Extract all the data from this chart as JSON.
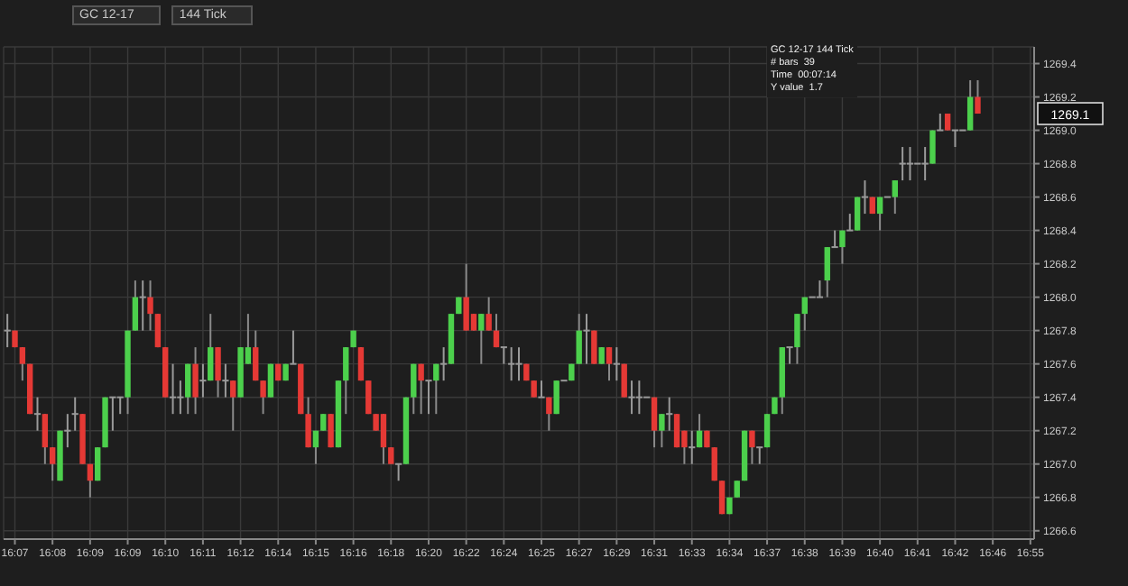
{
  "chart_data": {
    "type": "candlestick",
    "title": "GC 12-17",
    "subtitle": "144 Tick",
    "annotations": [
      "GC 12-17 144 Tick",
      "# bars  39",
      "Time  00:07:14",
      "Y value  1.7",
      {
        "text": "1269.1",
        "y": 1269.1
      }
    ],
    "categories": [
      null,
      "16:07",
      null,
      null,
      null,
      null,
      "16:08",
      null,
      null,
      null,
      null,
      "16:09",
      null,
      null,
      null,
      null,
      "16:09",
      null,
      null,
      null,
      null,
      "16:10",
      null,
      null,
      null,
      null,
      "16:11",
      null,
      null,
      null,
      null,
      "16:12",
      null,
      null,
      null,
      null,
      "16:14",
      null,
      null,
      null,
      null,
      "16:15",
      null,
      null,
      null,
      null,
      "16:16",
      null,
      null,
      null,
      null,
      "16:18",
      null,
      null,
      null,
      null,
      "16:20",
      null,
      null,
      null,
      null,
      "16:22",
      null,
      null,
      null,
      null,
      "16:24",
      null,
      null,
      null,
      null,
      "16:25",
      null,
      null,
      null,
      null,
      "16:27",
      null,
      null,
      null,
      null,
      "16:29",
      null,
      null,
      null,
      null,
      "16:31",
      null,
      null,
      null,
      null,
      "16:33",
      null,
      null,
      null,
      null,
      "16:34",
      null,
      null,
      null,
      null,
      "16:37",
      null,
      null,
      null,
      null,
      "16:38",
      null,
      null,
      null,
      null,
      "16:39",
      null,
      null,
      null,
      null,
      "16:40",
      null,
      null,
      null,
      null,
      "16:41",
      null,
      null,
      null,
      null,
      "16:42",
      null,
      null,
      null,
      null,
      "16:46",
      null,
      null,
      null,
      null,
      "16:55"
    ],
    "ohlc": [
      [
        1267.8,
        1267.9,
        1267.7,
        1267.8
      ],
      [
        1267.8,
        1267.8,
        1267.7,
        1267.7
      ],
      [
        1267.7,
        1267.7,
        1267.5,
        1267.6
      ],
      [
        1267.6,
        1267.6,
        1267.3,
        1267.3
      ],
      [
        1267.3,
        1267.4,
        1267.2,
        1267.3
      ],
      [
        1267.3,
        1267.3,
        1267.0,
        1267.1
      ],
      [
        1267.1,
        1267.1,
        1266.9,
        1267.0
      ],
      [
        1266.9,
        1267.2,
        1266.9,
        1267.2
      ],
      [
        1267.2,
        1267.3,
        1267.1,
        1267.2
      ],
      [
        1267.3,
        1267.4,
        1267.2,
        1267.3
      ],
      [
        1267.3,
        1267.3,
        1267.0,
        1267.0
      ],
      [
        1267.0,
        1267.0,
        1266.8,
        1266.9
      ],
      [
        1266.9,
        1267.1,
        1266.9,
        1267.1
      ],
      [
        1267.1,
        1267.4,
        1267.1,
        1267.4
      ],
      [
        1267.4,
        1267.4,
        1267.2,
        1267.4
      ],
      [
        1267.4,
        1267.4,
        1267.3,
        1267.4
      ],
      [
        1267.4,
        1267.8,
        1267.3,
        1267.8
      ],
      [
        1267.8,
        1268.1,
        1267.8,
        1268.0
      ],
      [
        1268.0,
        1268.1,
        1267.8,
        1268.0
      ],
      [
        1268.0,
        1268.1,
        1267.8,
        1267.9
      ],
      [
        1267.9,
        1267.9,
        1267.7,
        1267.7
      ],
      [
        1267.7,
        1267.7,
        1267.4,
        1267.4
      ],
      [
        1267.4,
        1267.6,
        1267.3,
        1267.4
      ],
      [
        1267.4,
        1267.5,
        1267.3,
        1267.4
      ],
      [
        1267.4,
        1267.6,
        1267.3,
        1267.6
      ],
      [
        1267.6,
        1267.7,
        1267.3,
        1267.4
      ],
      [
        1267.5,
        1267.6,
        1267.4,
        1267.5
      ],
      [
        1267.5,
        1267.9,
        1267.5,
        1267.7
      ],
      [
        1267.7,
        1267.7,
        1267.4,
        1267.5
      ],
      [
        1267.5,
        1267.6,
        1267.4,
        1267.5
      ],
      [
        1267.5,
        1267.5,
        1267.2,
        1267.4
      ],
      [
        1267.4,
        1267.7,
        1267.4,
        1267.7
      ],
      [
        1267.6,
        1267.9,
        1267.6,
        1267.7
      ],
      [
        1267.7,
        1267.8,
        1267.5,
        1267.5
      ],
      [
        1267.5,
        1267.5,
        1267.3,
        1267.4
      ],
      [
        1267.4,
        1267.6,
        1267.4,
        1267.6
      ],
      [
        1267.6,
        1267.6,
        1267.5,
        1267.5
      ],
      [
        1267.5,
        1267.6,
        1267.5,
        1267.6
      ],
      [
        1267.6,
        1267.8,
        1267.6,
        1267.6
      ],
      [
        1267.6,
        1267.6,
        1267.3,
        1267.3
      ],
      [
        1267.3,
        1267.4,
        1267.1,
        1267.1
      ],
      [
        1267.1,
        1267.2,
        1267.0,
        1267.2
      ],
      [
        1267.2,
        1267.3,
        1267.2,
        1267.3
      ],
      [
        1267.3,
        1267.3,
        1267.1,
        1267.1
      ],
      [
        1267.1,
        1267.5,
        1267.1,
        1267.5
      ],
      [
        1267.5,
        1267.7,
        1267.3,
        1267.7
      ],
      [
        1267.7,
        1267.8,
        1267.7,
        1267.8
      ],
      [
        1267.7,
        1267.7,
        1267.5,
        1267.5
      ],
      [
        1267.5,
        1267.5,
        1267.3,
        1267.3
      ],
      [
        1267.3,
        1267.3,
        1267.2,
        1267.2
      ],
      [
        1267.3,
        1267.3,
        1267.0,
        1267.1
      ],
      [
        1267.1,
        1267.1,
        1267.0,
        1267.0
      ],
      [
        1267.0,
        1267.0,
        1266.9,
        1267.0
      ],
      [
        1267.0,
        1267.4,
        1267.0,
        1267.4
      ],
      [
        1267.4,
        1267.6,
        1267.3,
        1267.6
      ],
      [
        1267.6,
        1267.6,
        1267.3,
        1267.5
      ],
      [
        1267.5,
        1267.5,
        1267.3,
        1267.5
      ],
      [
        1267.5,
        1267.6,
        1267.3,
        1267.6
      ],
      [
        1267.6,
        1267.7,
        1267.5,
        1267.6
      ],
      [
        1267.6,
        1267.9,
        1267.6,
        1267.9
      ],
      [
        1267.9,
        1268.0,
        1267.9,
        1268.0
      ],
      [
        1268.0,
        1268.2,
        1267.8,
        1267.8
      ],
      [
        1267.9,
        1267.9,
        1267.8,
        1267.8
      ],
      [
        1267.8,
        1267.9,
        1267.6,
        1267.9
      ],
      [
        1267.9,
        1268.0,
        1267.8,
        1267.8
      ],
      [
        1267.8,
        1267.9,
        1267.7,
        1267.7
      ],
      [
        1267.7,
        1267.7,
        1267.6,
        1267.7
      ],
      [
        1267.6,
        1267.7,
        1267.5,
        1267.6
      ],
      [
        1267.6,
        1267.7,
        1267.5,
        1267.6
      ],
      [
        1267.6,
        1267.6,
        1267.5,
        1267.5
      ],
      [
        1267.5,
        1267.5,
        1267.4,
        1267.4
      ],
      [
        1267.4,
        1267.5,
        1267.4,
        1267.4
      ],
      [
        1267.4,
        1267.4,
        1267.2,
        1267.3
      ],
      [
        1267.3,
        1267.5,
        1267.3,
        1267.5
      ],
      [
        1267.5,
        1267.5,
        1267.5,
        1267.5
      ],
      [
        1267.5,
        1267.6,
        1267.5,
        1267.6
      ],
      [
        1267.6,
        1267.9,
        1267.6,
        1267.8
      ],
      [
        1267.8,
        1267.9,
        1267.6,
        1267.8
      ],
      [
        1267.8,
        1267.8,
        1267.6,
        1267.6
      ],
      [
        1267.6,
        1267.7,
        1267.6,
        1267.7
      ],
      [
        1267.7,
        1267.7,
        1267.5,
        1267.6
      ],
      [
        1267.6,
        1267.7,
        1267.5,
        1267.6
      ],
      [
        1267.6,
        1267.6,
        1267.4,
        1267.4
      ],
      [
        1267.4,
        1267.5,
        1267.3,
        1267.4
      ],
      [
        1267.4,
        1267.5,
        1267.3,
        1267.4
      ],
      [
        1267.4,
        1267.4,
        1267.4,
        1267.4
      ],
      [
        1267.4,
        1267.4,
        1267.1,
        1267.2
      ],
      [
        1267.2,
        1267.3,
        1267.1,
        1267.3
      ],
      [
        1267.3,
        1267.4,
        1267.2,
        1267.3
      ],
      [
        1267.3,
        1267.3,
        1267.1,
        1267.1
      ],
      [
        1267.2,
        1267.2,
        1267.0,
        1267.1
      ],
      [
        1267.1,
        1267.2,
        1267.0,
        1267.1
      ],
      [
        1267.1,
        1267.3,
        1267.1,
        1267.2
      ],
      [
        1267.2,
        1267.2,
        1267.1,
        1267.1
      ],
      [
        1267.1,
        1267.1,
        1266.9,
        1266.9
      ],
      [
        1266.9,
        1266.9,
        1266.7,
        1266.7
      ],
      [
        1266.7,
        1266.8,
        1266.7,
        1266.8
      ],
      [
        1266.8,
        1266.9,
        1266.8,
        1266.9
      ],
      [
        1266.9,
        1267.2,
        1266.9,
        1267.2
      ],
      [
        1267.2,
        1267.2,
        1267.0,
        1267.1
      ],
      [
        1267.1,
        1267.1,
        1267.0,
        1267.1
      ],
      [
        1267.1,
        1267.3,
        1267.1,
        1267.3
      ],
      [
        1267.3,
        1267.4,
        1267.3,
        1267.4
      ],
      [
        1267.4,
        1267.7,
        1267.3,
        1267.7
      ],
      [
        1267.7,
        1267.7,
        1267.6,
        1267.7
      ],
      [
        1267.7,
        1267.9,
        1267.6,
        1267.9
      ],
      [
        1267.9,
        1268.0,
        1267.8,
        1268.0
      ],
      [
        1268.0,
        1268.0,
        1268.0,
        1268.0
      ],
      [
        1268.0,
        1268.1,
        1268.0,
        1268.0
      ],
      [
        1268.1,
        1268.3,
        1268.0,
        1268.3
      ],
      [
        1268.3,
        1268.4,
        1268.3,
        1268.3
      ],
      [
        1268.3,
        1268.4,
        1268.2,
        1268.4
      ],
      [
        1268.4,
        1268.5,
        1268.4,
        1268.4
      ],
      [
        1268.4,
        1268.6,
        1268.4,
        1268.6
      ],
      [
        1268.6,
        1268.7,
        1268.5,
        1268.6
      ],
      [
        1268.6,
        1268.6,
        1268.5,
        1268.5
      ],
      [
        1268.5,
        1268.6,
        1268.4,
        1268.6
      ],
      [
        1268.6,
        1268.6,
        1268.6,
        1268.6
      ],
      [
        1268.6,
        1268.7,
        1268.5,
        1268.7
      ],
      [
        1268.8,
        1268.9,
        1268.7,
        1268.8
      ],
      [
        1268.8,
        1268.9,
        1268.7,
        1268.8
      ],
      [
        1268.8,
        1268.8,
        1268.8,
        1268.8
      ],
      [
        1268.8,
        1268.9,
        1268.7,
        1268.8
      ],
      [
        1268.8,
        1269.0,
        1268.8,
        1269.0
      ],
      [
        1269.0,
        1269.1,
        1269.0,
        1269.0
      ],
      [
        1269.1,
        1269.1,
        1269.0,
        1269.0
      ],
      [
        1269.0,
        1269.0,
        1268.9,
        1269.0
      ],
      [
        1269.0,
        1269.0,
        1269.0,
        1269.0
      ],
      [
        1269.0,
        1269.3,
        1269.0,
        1269.2
      ],
      [
        1269.2,
        1269.3,
        1269.1,
        1269.1
      ],
      null,
      null,
      null,
      null,
      null,
      null,
      null
    ],
    "colors": [
      "#9a9a9a",
      "#e53935",
      "#e53935",
      "#e53935",
      "#9a9a9a",
      "#e53935",
      "#e53935",
      "#4cd04c",
      "#9a9a9a",
      "#9a9a9a",
      "#e53935",
      "#e53935",
      "#4cd04c",
      "#4cd04c",
      "#9a9a9a",
      "#9a9a9a",
      "#4cd04c",
      "#4cd04c",
      "#9a9a9a",
      "#e53935",
      "#e53935",
      "#e53935",
      "#9a9a9a",
      "#9a9a9a",
      "#4cd04c",
      "#e53935",
      "#9a9a9a",
      "#4cd04c",
      "#e53935",
      "#9a9a9a",
      "#e53935",
      "#4cd04c",
      "#4cd04c",
      "#e53935",
      "#e53935",
      "#4cd04c",
      "#e53935",
      "#4cd04c",
      "#9a9a9a",
      "#e53935",
      "#e53935",
      "#4cd04c",
      "#4cd04c",
      "#e53935",
      "#4cd04c",
      "#4cd04c",
      "#4cd04c",
      "#e53935",
      "#e53935",
      "#e53935",
      "#e53935",
      "#e53935",
      "#9a9a9a",
      "#4cd04c",
      "#4cd04c",
      "#e53935",
      "#9a9a9a",
      "#4cd04c",
      "#9a9a9a",
      "#4cd04c",
      "#4cd04c",
      "#e53935",
      "#e53935",
      "#4cd04c",
      "#e53935",
      "#e53935",
      "#9a9a9a",
      "#9a9a9a",
      "#9a9a9a",
      "#e53935",
      "#e53935",
      "#9a9a9a",
      "#e53935",
      "#4cd04c",
      "#9a9a9a",
      "#4cd04c",
      "#4cd04c",
      "#9a9a9a",
      "#e53935",
      "#4cd04c",
      "#e53935",
      "#9a9a9a",
      "#e53935",
      "#9a9a9a",
      "#9a9a9a",
      "#9a9a9a",
      "#e53935",
      "#4cd04c",
      "#9a9a9a",
      "#e53935",
      "#e53935",
      "#9a9a9a",
      "#4cd04c",
      "#e53935",
      "#e53935",
      "#e53935",
      "#4cd04c",
      "#4cd04c",
      "#4cd04c",
      "#e53935",
      "#9a9a9a",
      "#4cd04c",
      "#4cd04c",
      "#4cd04c",
      "#9a9a9a",
      "#4cd04c",
      "#4cd04c",
      "#9a9a9a",
      "#9a9a9a",
      "#4cd04c",
      "#9a9a9a",
      "#4cd04c",
      "#9a9a9a",
      "#4cd04c",
      "#9a9a9a",
      "#e53935",
      "#4cd04c",
      "#9a9a9a",
      "#4cd04c",
      "#9a9a9a",
      "#9a9a9a",
      "#9a9a9a",
      "#9a9a9a",
      "#4cd04c",
      "#9a9a9a",
      "#e53935",
      "#9a9a9a",
      "#9a9a9a",
      "#4cd04c",
      "#e53935",
      null,
      null,
      null,
      null,
      null,
      null,
      null
    ],
    "ylim": [
      1266.55,
      1269.5
    ],
    "yticks": [
      1266.6,
      1266.8,
      {
        "value": 1267,
        "label": "1267.0"
      },
      1267.2,
      1267.4,
      1267.6,
      1267.8,
      {
        "value": 1268,
        "label": "1268.0"
      },
      1268.2,
      1268.4,
      1268.6,
      1268.8,
      {
        "value": 1269,
        "label": "1269.0"
      },
      1269.2,
      1269.4
    ],
    "grid": true
  }
}
